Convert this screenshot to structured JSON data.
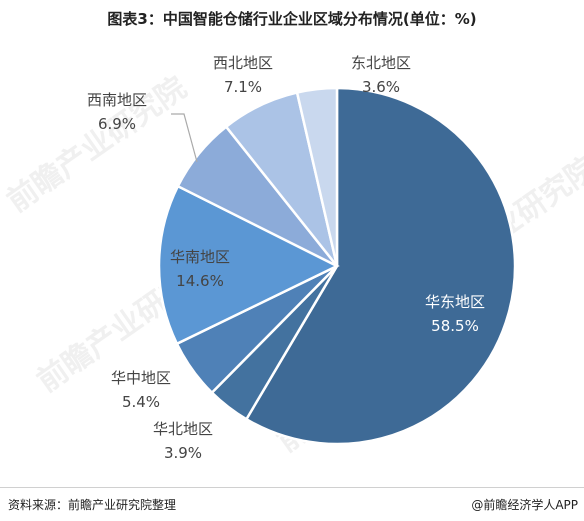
{
  "title": "图表3：中国智能仓储行业企业区域分布情况(单位：%)",
  "source": "资料来源：前瞻产业研究院整理",
  "brand": "@前瞻经济学人APP",
  "watermark": "前瞻产业研究院",
  "colors": {
    "slices": [
      "#3e6a96",
      "#43729f",
      "#4f81b7",
      "#5b97d4",
      "#8cabd9",
      "#abc3e6",
      "#c9d8ee"
    ],
    "label_light": "#ffffff",
    "label_dark": "#444444",
    "leader": "#aaaaaa"
  },
  "chart_data": {
    "type": "pie",
    "unit": "%",
    "slices": [
      {
        "label": "华东地区",
        "value": 58.5,
        "value_text": "58.5%"
      },
      {
        "label": "华北地区",
        "value": 3.9,
        "value_text": "3.9%"
      },
      {
        "label": "华中地区",
        "value": 5.4,
        "value_text": "5.4%"
      },
      {
        "label": "华南地区",
        "value": 14.6,
        "value_text": "14.6%"
      },
      {
        "label": "西南地区",
        "value": 6.9,
        "value_text": "6.9%"
      },
      {
        "label": "西北地区",
        "value": 7.1,
        "value_text": "7.1%"
      },
      {
        "label": "东北地区",
        "value": 3.6,
        "value_text": "3.6%"
      }
    ]
  }
}
